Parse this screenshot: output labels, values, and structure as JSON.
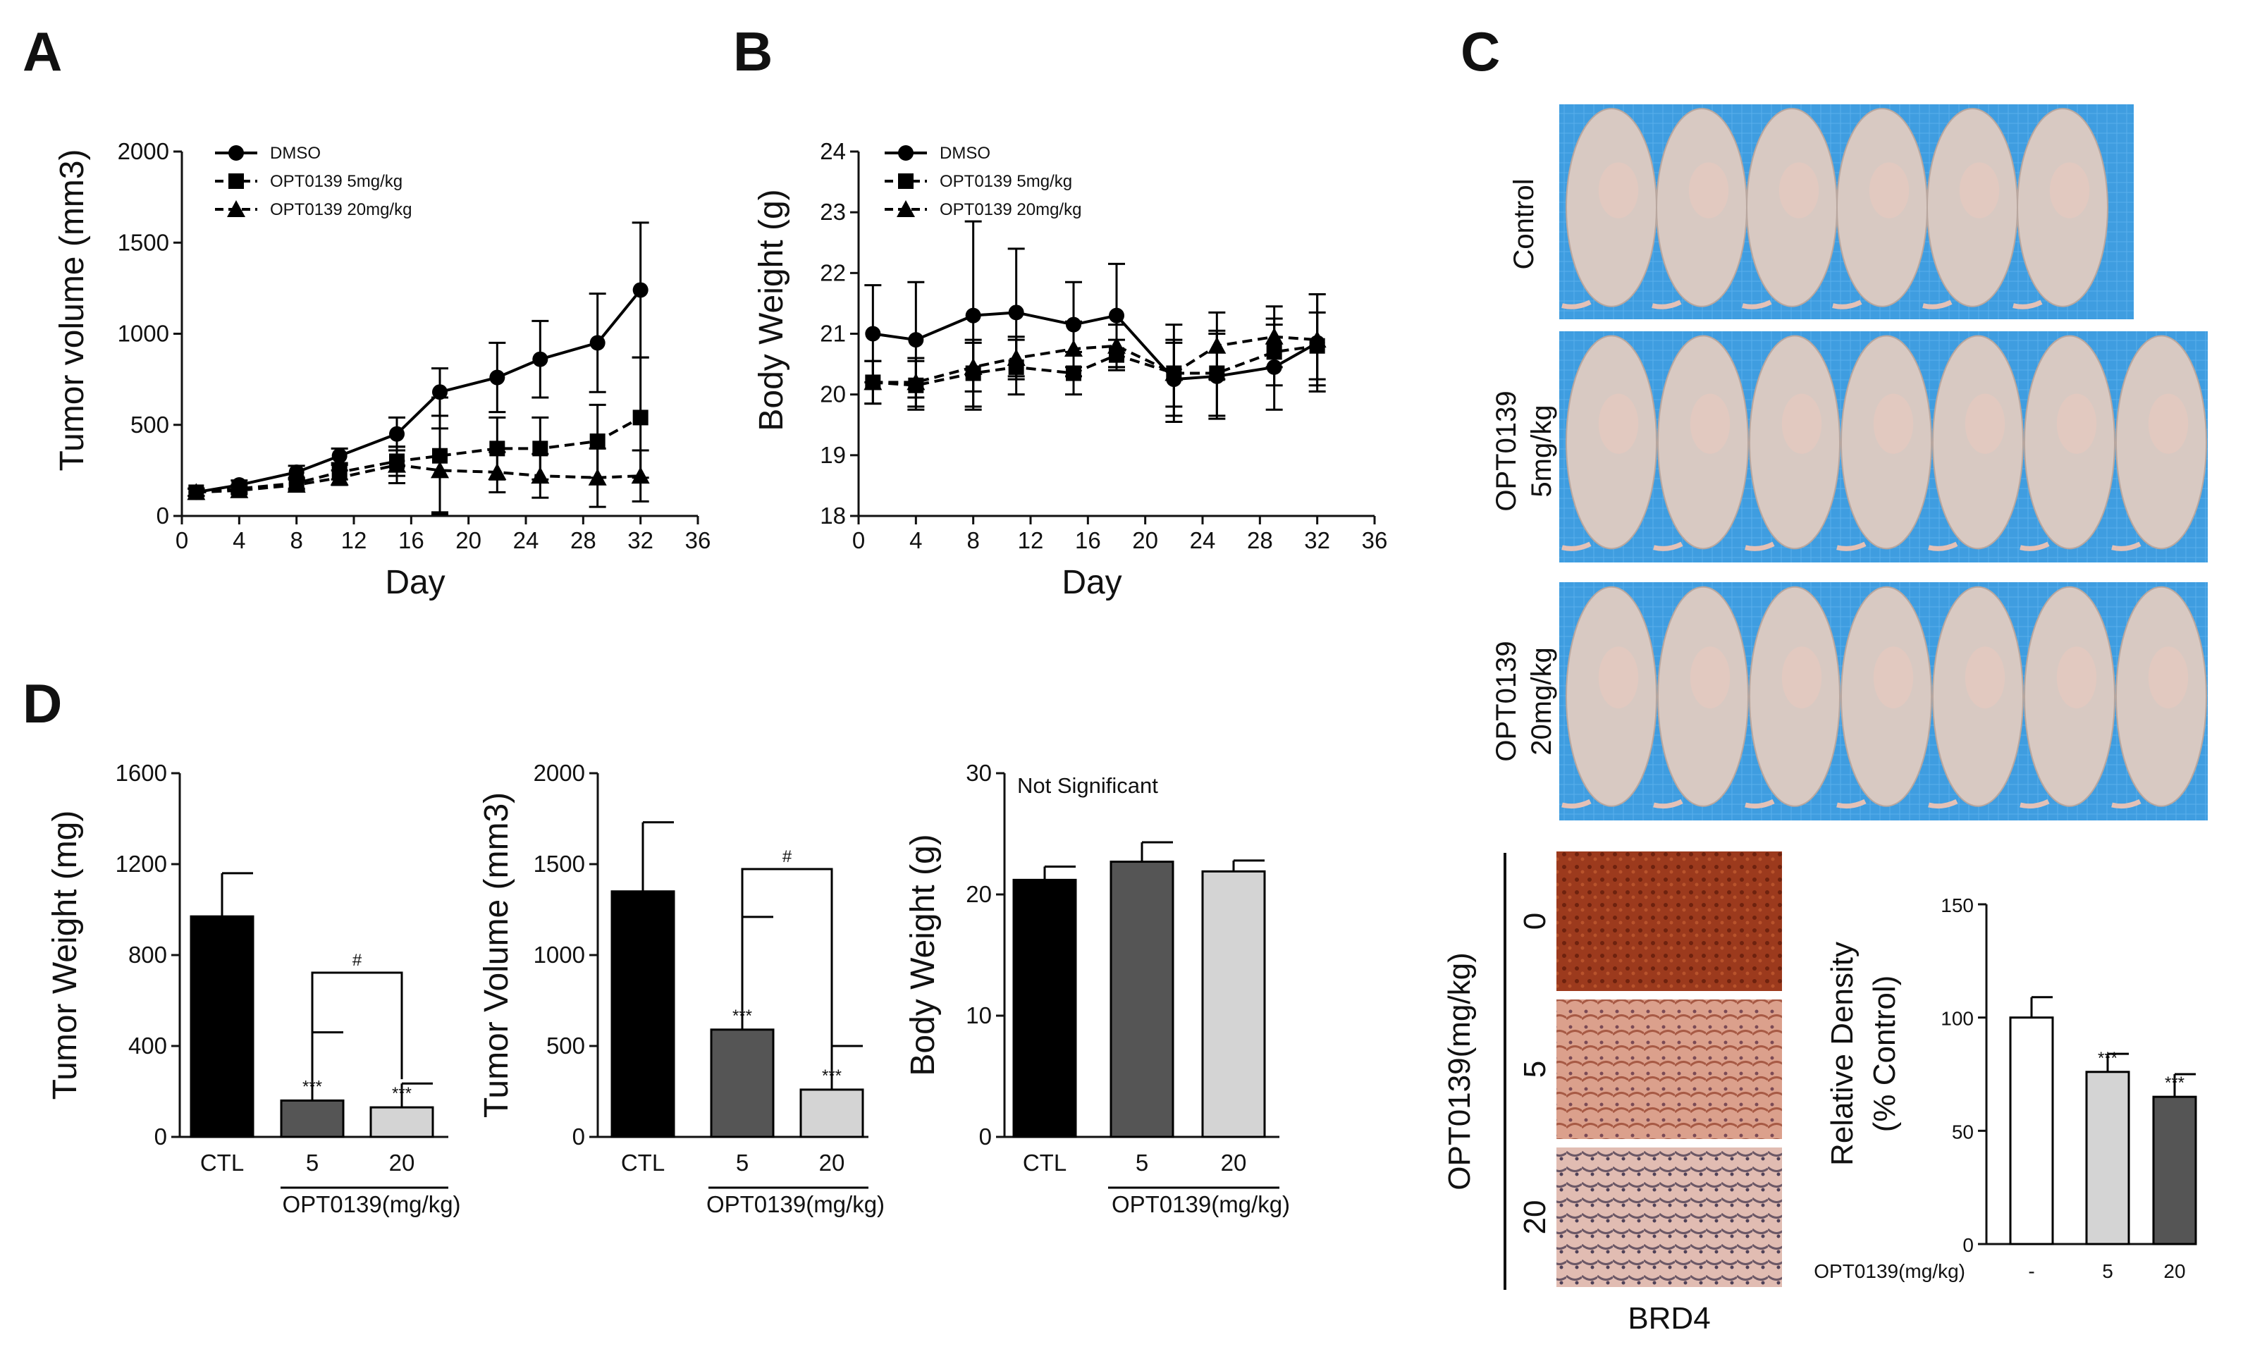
{
  "panels": {
    "a": "A",
    "b": "B",
    "c": "C",
    "d": "D"
  },
  "chart_data": [
    {
      "id": "A",
      "type": "line",
      "xlabel": "Day",
      "ylabel": "Tumor volume (mm3)",
      "xlim": [
        0,
        36
      ],
      "ylim": [
        0,
        2000
      ],
      "xticks": [
        0,
        4,
        8,
        12,
        16,
        20,
        24,
        28,
        32,
        36
      ],
      "yticks": [
        0,
        500,
        1000,
        1500,
        2000
      ],
      "series": [
        {
          "name": "DMSO",
          "marker": "circle",
          "dash": "solid",
          "x": [
            1,
            4,
            8,
            11,
            15,
            18,
            22,
            25,
            29,
            32
          ],
          "y": [
            130,
            170,
            240,
            330,
            450,
            680,
            760,
            860,
            950,
            1240
          ],
          "err": [
            20,
            25,
            35,
            40,
            90,
            130,
            190,
            210,
            270,
            370
          ]
        },
        {
          "name": "OPT0139 5mg/kg",
          "marker": "square",
          "dash": "dashed",
          "x": [
            1,
            4,
            8,
            11,
            15,
            18,
            22,
            25,
            29,
            32
          ],
          "y": [
            130,
            150,
            180,
            240,
            300,
            330,
            370,
            370,
            410,
            540
          ],
          "err": [
            20,
            20,
            30,
            40,
            80,
            320,
            170,
            170,
            200,
            330
          ]
        },
        {
          "name": "OPT0139 20mg/kg",
          "marker": "triangle",
          "dash": "dashed",
          "x": [
            1,
            4,
            8,
            11,
            15,
            18,
            22,
            25,
            29,
            32
          ],
          "y": [
            130,
            140,
            170,
            210,
            280,
            250,
            240,
            220,
            210,
            220
          ],
          "err": [
            20,
            20,
            30,
            40,
            100,
            230,
            110,
            120,
            160,
            140
          ]
        }
      ]
    },
    {
      "id": "B",
      "type": "line",
      "xlabel": "Day",
      "ylabel": "Body Weight (g)",
      "xlim": [
        0,
        36
      ],
      "ylim": [
        18,
        24
      ],
      "xticks": [
        0,
        4,
        8,
        12,
        16,
        20,
        24,
        28,
        32,
        36
      ],
      "yticks": [
        18,
        19,
        20,
        21,
        22,
        23,
        24
      ],
      "series": [
        {
          "name": "DMSO",
          "marker": "circle",
          "dash": "solid",
          "x": [
            1,
            4,
            8,
            11,
            15,
            18,
            22,
            25,
            29,
            32
          ],
          "y": [
            21.0,
            20.9,
            21.3,
            21.35,
            21.15,
            21.3,
            20.25,
            20.3,
            20.45,
            20.85
          ],
          "err": [
            0.8,
            0.95,
            1.55,
            1.05,
            0.7,
            0.85,
            0.6,
            0.7,
            0.7,
            0.8
          ]
        },
        {
          "name": "OPT0139 5mg/kg",
          "marker": "square",
          "dash": "dashed",
          "x": [
            1,
            4,
            8,
            11,
            15,
            18,
            22,
            25,
            29,
            32
          ],
          "y": [
            20.2,
            20.15,
            20.35,
            20.45,
            20.35,
            20.65,
            20.35,
            20.35,
            20.7,
            20.8
          ],
          "err": [
            0.35,
            0.4,
            0.55,
            0.45,
            0.35,
            0.25,
            0.8,
            0.7,
            0.55,
            0.55
          ]
        },
        {
          "name": "OPT0139 20mg/kg",
          "marker": "triangle",
          "dash": "dashed",
          "x": [
            1,
            4,
            8,
            11,
            15,
            18,
            22,
            25,
            29,
            32
          ],
          "y": [
            20.2,
            20.2,
            20.45,
            20.6,
            20.75,
            20.8,
            20.35,
            20.8,
            20.95,
            20.9
          ],
          "err": [
            0.35,
            0.4,
            0.4,
            0.35,
            0.45,
            0.35,
            0.55,
            0.55,
            0.5,
            0.75
          ]
        }
      ]
    },
    {
      "id": "D1",
      "type": "bar",
      "ylabel": "Tumor Weight (mg)",
      "ylim": [
        0,
        1600
      ],
      "yticks": [
        0,
        400,
        800,
        1200,
        1600
      ],
      "categories": [
        "CTL",
        "5",
        "20"
      ],
      "group_label": "OPT0139(mg/kg)",
      "values": [
        970,
        160,
        130
      ],
      "err": [
        190,
        300,
        105
      ],
      "colors": [
        "#000000",
        "#555555",
        "#d4d4d4"
      ],
      "stars": [
        "",
        "***",
        "***"
      ],
      "bracket": {
        "from": 1,
        "to": 2,
        "label": "#"
      }
    },
    {
      "id": "D2",
      "type": "bar",
      "ylabel": "Tumor Volume (mm3)",
      "ylim": [
        0,
        2000
      ],
      "yticks": [
        0,
        500,
        1000,
        1500,
        2000
      ],
      "categories": [
        "CTL",
        "5",
        "20"
      ],
      "group_label": "OPT0139(mg/kg)",
      "values": [
        1350,
        590,
        260
      ],
      "err": [
        380,
        620,
        240
      ],
      "colors": [
        "#000000",
        "#555555",
        "#d4d4d4"
      ],
      "stars": [
        "",
        "***",
        "***"
      ],
      "bracket": {
        "from": 1,
        "to": 2,
        "label": "#"
      }
    },
    {
      "id": "D3",
      "type": "bar",
      "ylabel": "Body Weight (g)",
      "ylim": [
        0,
        30
      ],
      "yticks": [
        0,
        10,
        20,
        30
      ],
      "categories": [
        "CTL",
        "5",
        "20"
      ],
      "group_label": "OPT0139(mg/kg)",
      "values": [
        21.2,
        22.7,
        21.9
      ],
      "err": [
        1.1,
        1.6,
        0.9
      ],
      "colors": [
        "#000000",
        "#555555",
        "#d4d4d4"
      ],
      "annotation": "Not Significant"
    },
    {
      "id": "C2",
      "type": "bar",
      "ylabel": "Relative Density (% Control)",
      "ylim": [
        0,
        150
      ],
      "yticks": [
        0,
        50,
        100,
        150
      ],
      "categories": [
        "-",
        "5",
        "20"
      ],
      "group_label": "OPT0139(mg/kg)",
      "values": [
        100,
        76,
        65
      ],
      "err": [
        9,
        8,
        10
      ],
      "colors": [
        "#ffffff",
        "#d4d4d4",
        "#555555"
      ],
      "stars": [
        "",
        "***",
        "***"
      ]
    }
  ],
  "photos": {
    "rows": [
      {
        "label": "Control",
        "count": 6
      },
      {
        "label_line1": "OPT0139",
        "label_line2": "5mg/kg",
        "count": 7
      },
      {
        "label_line1": "OPT0139",
        "label_line2": "20mg/kg",
        "count": 7
      }
    ]
  },
  "ihc": {
    "axis_label": "OPT0139(mg/kg)",
    "levels": [
      "0",
      "5",
      "20"
    ],
    "stain": "BRD4",
    "colors": [
      "#9c3a1d",
      "#d99a86",
      "#dcb6ad"
    ]
  }
}
